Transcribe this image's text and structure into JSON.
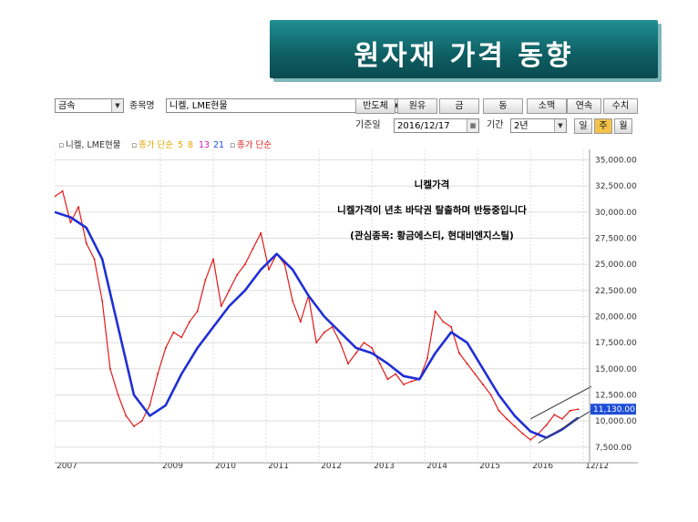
{
  "banner": {
    "title": "원자재 가격 동향"
  },
  "toolbar": {
    "category_value": "금속",
    "item_label": "종목명",
    "item_value": "니켈, LME현물",
    "buttons": [
      "반도체",
      "원유",
      "금",
      "동",
      "소맥",
      "연속",
      "수치"
    ],
    "date_label": "기준일",
    "date_value": "2016/12/17",
    "period_label": "기간",
    "period_value": "2년",
    "freq_buttons": [
      "일",
      "주",
      "월"
    ],
    "active_freq": "주"
  },
  "legend": {
    "series_name": "니켈, LME현물",
    "ma_label": "종가 단순",
    "ma_periods": [
      "5",
      "8",
      "13",
      "21"
    ],
    "close_label": "종가 단순",
    "colors": {
      "ma5": "#e8a400",
      "ma8": "#e8a400",
      "ma13": "#c71fb3",
      "ma21": "#1f4fd6",
      "close": "#e31a1a"
    }
  },
  "annotation": {
    "title": "니켈가격",
    "line1": "니켈가격이 년초 바닥권 탈출하며 반등중입니다",
    "line2": "(관심종목: 황금에스티, 현대비엔지스틸)"
  },
  "chart_data": {
    "type": "line",
    "title": "",
    "x_ticks": [
      "2007",
      "2009",
      "2010",
      "2011",
      "2012",
      "2013",
      "2014",
      "2015",
      "2016",
      "12/12"
    ],
    "y_ticks": [
      7500,
      10000,
      12500,
      15000,
      17500,
      20000,
      22500,
      25000,
      27500,
      30000,
      32500,
      35000
    ],
    "y_tick_labels": [
      "7,500.00",
      "10,000.00",
      "12,500.00",
      "15,000.00",
      "17,500.00",
      "20,000.00",
      "22,500.00",
      "25,000.00",
      "27,500.00",
      "30,000.00",
      "32,500.00",
      "35,000.00"
    ],
    "ylim": [
      6000,
      36000
    ],
    "last_value_label": "11,130.00",
    "last_value": 11130,
    "grid": true,
    "series": [
      {
        "name": "니켈, LME현물",
        "color": "#e31a1a",
        "x": [
          2007.0,
          2007.15,
          2007.3,
          2007.45,
          2007.6,
          2007.75,
          2007.9,
          2008.05,
          2008.2,
          2008.35,
          2008.5,
          2008.65,
          2008.8,
          2008.95,
          2009.1,
          2009.25,
          2009.4,
          2009.55,
          2009.7,
          2009.85,
          2010.0,
          2010.15,
          2010.3,
          2010.45,
          2010.6,
          2010.75,
          2010.9,
          2011.05,
          2011.2,
          2011.35,
          2011.5,
          2011.65,
          2011.8,
          2011.95,
          2012.1,
          2012.25,
          2012.4,
          2012.55,
          2012.7,
          2012.85,
          2013.0,
          2013.15,
          2013.3,
          2013.45,
          2013.6,
          2013.75,
          2013.9,
          2014.05,
          2014.2,
          2014.35,
          2014.5,
          2014.65,
          2014.8,
          2014.95,
          2015.1,
          2015.25,
          2015.4,
          2015.55,
          2015.7,
          2015.85,
          2016.0,
          2016.15,
          2016.3,
          2016.45,
          2016.6,
          2016.75,
          2016.9
        ],
        "y": [
          31500,
          32000,
          29000,
          30500,
          27000,
          25500,
          21500,
          15000,
          12500,
          10500,
          9500,
          10000,
          11500,
          14500,
          17000,
          18500,
          18000,
          19500,
          20500,
          23500,
          25500,
          21000,
          22500,
          24000,
          25000,
          26500,
          28000,
          24500,
          26000,
          25000,
          21500,
          19500,
          22000,
          17500,
          18500,
          19000,
          17500,
          15500,
          16500,
          17500,
          17000,
          15500,
          14000,
          14500,
          13500,
          13800,
          14000,
          16000,
          20500,
          19500,
          19000,
          16500,
          15500,
          14500,
          13500,
          12500,
          11000,
          10200,
          9500,
          8800,
          8200,
          8800,
          9600,
          10600,
          10200,
          11000,
          11130
        ]
      },
      {
        "name": "21",
        "color": "#1f2fd6",
        "x": [
          2007.0,
          2007.3,
          2007.6,
          2007.9,
          2008.2,
          2008.5,
          2008.8,
          2009.1,
          2009.4,
          2009.7,
          2010.0,
          2010.3,
          2010.6,
          2010.9,
          2011.2,
          2011.5,
          2011.8,
          2012.1,
          2012.4,
          2012.7,
          2013.0,
          2013.3,
          2013.6,
          2013.9,
          2014.2,
          2014.5,
          2014.8,
          2015.1,
          2015.4,
          2015.7,
          2016.0,
          2016.3,
          2016.6,
          2016.9
        ],
        "y": [
          30000,
          29500,
          28500,
          25500,
          19000,
          12500,
          10500,
          11500,
          14500,
          17000,
          19000,
          21000,
          22500,
          24500,
          26000,
          24500,
          22000,
          20000,
          18500,
          17000,
          16500,
          15500,
          14300,
          14000,
          16500,
          18500,
          17500,
          15000,
          12500,
          10500,
          9000,
          8400,
          9200,
          10300
        ]
      }
    ],
    "annotations": [
      "니켈가격",
      "니켈가격이 년초 바닥권 탈출하며 반등중입니다",
      "(관심종목: 황금에스티, 현대비엔지스틸)"
    ]
  }
}
